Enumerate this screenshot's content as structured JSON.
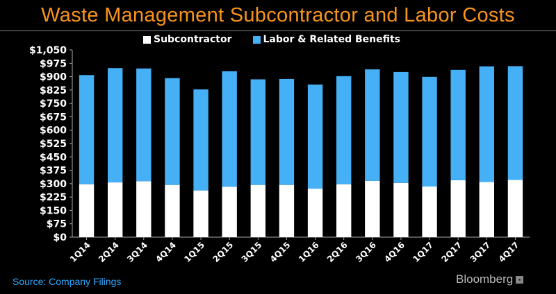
{
  "title": "Waste Management Subcontractor and Labor Costs",
  "source": "Source: Company Filings",
  "brand": "Bloomberg",
  "colors": {
    "background": "#000000",
    "title": "#f7941d",
    "subcontractor": "#ffffff",
    "labor": "#45b0f5",
    "source": "#2fa8ff"
  },
  "legend": [
    {
      "label": "Subcontractor",
      "color": "#ffffff"
    },
    {
      "label": "Labor & Related Benefits",
      "color": "#45b0f5"
    }
  ],
  "chart_data": {
    "type": "bar",
    "stacked": true,
    "title": "Waste Management Subcontractor and Labor Costs",
    "categories": [
      "1Q14",
      "2Q14",
      "3Q14",
      "4Q14",
      "1Q15",
      "2Q15",
      "3Q15",
      "4Q15",
      "1Q16",
      "2Q16",
      "3Q16",
      "4Q16",
      "1Q17",
      "2Q17",
      "3Q17",
      "4Q17"
    ],
    "series": [
      {
        "name": "Subcontractor",
        "color": "#ffffff",
        "values": [
          297,
          307,
          314,
          293,
          262,
          283,
          293,
          293,
          272,
          297,
          316,
          304,
          284,
          319,
          309,
          321
        ]
      },
      {
        "name": "Labor & Related Benefits",
        "color": "#45b0f5",
        "values": [
          612,
          641,
          632,
          599,
          567,
          648,
          592,
          594,
          584,
          606,
          625,
          622,
          615,
          619,
          649,
          638
        ]
      }
    ],
    "ylim": [
      0,
      1050
    ],
    "yticks": [
      0,
      75,
      150,
      225,
      300,
      375,
      450,
      525,
      600,
      675,
      750,
      825,
      900,
      975,
      1050
    ],
    "ytick_labels": [
      "$0",
      "$75",
      "$150",
      "$225",
      "$300",
      "$375",
      "$450",
      "$525",
      "$600",
      "$675",
      "$750",
      "$825",
      "$900",
      "$975",
      "$1,050"
    ],
    "xlabel": "",
    "ylabel": "",
    "grid": false,
    "legend_position": "top"
  }
}
